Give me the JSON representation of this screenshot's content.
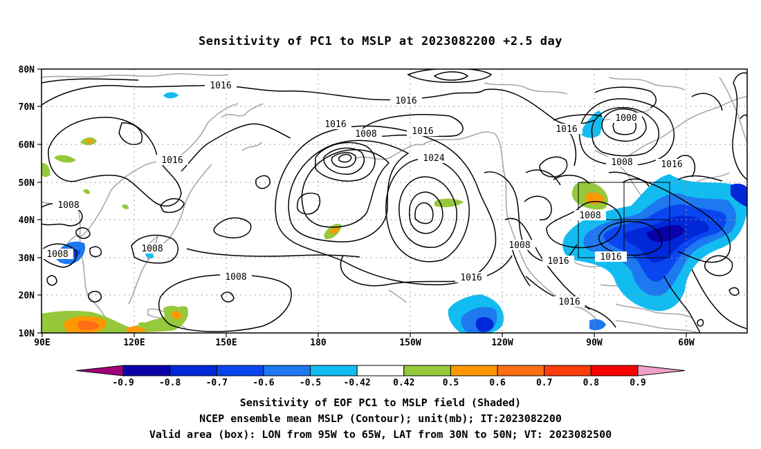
{
  "title": "Sensitivity of PC1 to MSLP at 2023082200 +2.5 day",
  "map": {
    "lat_labels": [
      "80N",
      "70N",
      "60N",
      "50N",
      "40N",
      "30N",
      "20N",
      "10N"
    ],
    "lon_labels": [
      "90E",
      "120E",
      "150E",
      "180",
      "150W",
      "120W",
      "90W",
      "60W"
    ],
    "contour_labels": [
      {
        "text": "1016"
      },
      {
        "text": "1016"
      },
      {
        "text": "1016"
      },
      {
        "text": "1008"
      },
      {
        "text": "1016"
      },
      {
        "text": "1016"
      },
      {
        "text": "1024"
      },
      {
        "text": "1016"
      },
      {
        "text": "1000"
      },
      {
        "text": "1008"
      },
      {
        "text": "1016"
      },
      {
        "text": "1008"
      },
      {
        "text": "1008"
      },
      {
        "text": "1008"
      },
      {
        "text": "1008"
      },
      {
        "text": "1016"
      },
      {
        "text": "1008"
      },
      {
        "text": "1016"
      },
      {
        "text": "1016"
      },
      {
        "text": "1008"
      },
      {
        "text": "1016"
      }
    ],
    "valid_box": {
      "lon_from": "95W",
      "lon_to": "65W",
      "lat_from": "30N",
      "lat_to": "50N"
    }
  },
  "colorbar": {
    "labels": [
      "-0.9",
      "-0.8",
      "-0.7",
      "-0.6",
      "-0.5",
      "-0.42",
      "0.42",
      "0.5",
      "0.6",
      "0.7",
      "0.8",
      "0.9"
    ],
    "colors": [
      "#a0007a",
      "#0a00a8",
      "#0028d8",
      "#0a46f0",
      "#1e78f0",
      "#12bcf0",
      "#ffffff",
      "#96c83c",
      "#ff9800",
      "#ff6e14",
      "#ff3c0a",
      "#ff0000",
      "#f0a0c8"
    ]
  },
  "captions": {
    "line1": "Sensitivity of EOF PC1 to MSLP field (Shaded)",
    "line2": "NCEP ensemble mean MSLP (Contour); unit(mb); IT:2023082200",
    "line3": "Valid area (box): LON from 95W to 65W, LAT from 30N to 50N; VT: 2023082500"
  }
}
